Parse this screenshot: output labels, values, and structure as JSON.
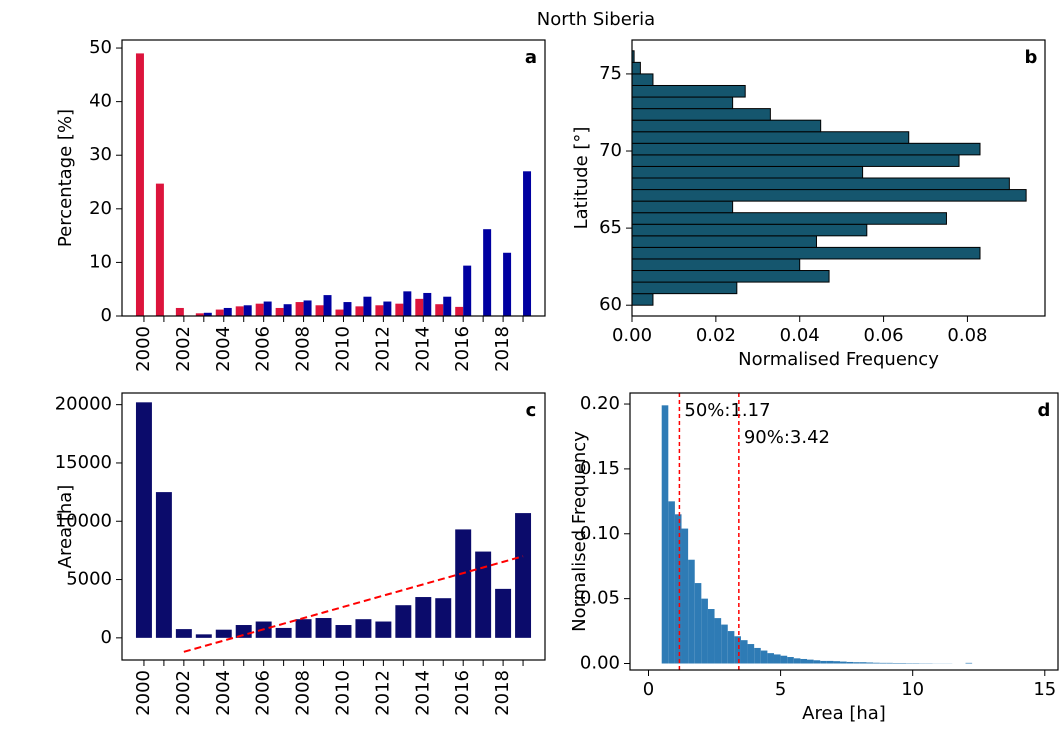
{
  "title": "North Siberia",
  "chart_data": [
    {
      "type": "bar",
      "label": "a",
      "ylabel": "Percentage [%]",
      "categories": [
        "2000",
        null,
        "2002",
        null,
        "2004",
        null,
        "2006",
        null,
        "2008",
        null,
        "2010",
        null,
        "2012",
        null,
        "2014",
        null,
        "2016",
        null,
        "2018",
        null
      ],
      "series": [
        {
          "color": "#dc143c",
          "values": [
            49,
            24.7,
            1.5,
            0.5,
            1.2,
            1.8,
            2.3,
            1.5,
            2.6,
            2.0,
            1.2,
            1.8,
            2.0,
            2.3,
            3.2,
            2.2,
            1.7,
            0,
            0,
            0
          ]
        },
        {
          "color": "#0000a0",
          "values": [
            0,
            0,
            0,
            0.6,
            1.5,
            2.0,
            2.7,
            2.2,
            2.9,
            3.9,
            2.6,
            3.6,
            2.7,
            4.6,
            4.3,
            3.6,
            9.4,
            16.2,
            11.8,
            27
          ]
        }
      ],
      "ylim": [
        0,
        51.5
      ],
      "yticks": [
        0,
        10,
        20,
        30,
        40,
        50
      ]
    },
    {
      "type": "histogram",
      "orientation": "horizontal",
      "label": "b",
      "ylabel": "Latitude [°]",
      "xlabel": "Normalised Frequency",
      "color": "#15566e",
      "edgecolor": "#000000",
      "bins": [
        60,
        60.75,
        61.5,
        62.25,
        63,
        63.75,
        64.5,
        65.25,
        66,
        66.75,
        67.5,
        68.25,
        69,
        69.75,
        70.5,
        71.25,
        72,
        72.75,
        73.5,
        74.25,
        75,
        75.75,
        76.5
      ],
      "values": [
        0.005,
        0.025,
        0.047,
        0.04,
        0.083,
        0.044,
        0.056,
        0.075,
        0.024,
        0.094,
        0.09,
        0.055,
        0.078,
        0.083,
        0.066,
        0.045,
        0.033,
        0.024,
        0.027,
        0.005,
        0.002,
        0.0005
      ],
      "xlim": [
        0,
        0.0985
      ],
      "xticks": [
        {
          "value": 0,
          "label": "0.00"
        },
        0.02,
        0.04,
        0.06,
        0.08
      ],
      "ylim": [
        59.3,
        77.2
      ],
      "yticks": [
        60,
        65,
        70,
        75
      ]
    },
    {
      "type": "bar",
      "label": "c",
      "ylabel": "Area [ha]",
      "color": "#0b0b6b",
      "categories": [
        "2000",
        null,
        "2002",
        null,
        "2004",
        null,
        "2006",
        null,
        "2008",
        null,
        "2010",
        null,
        "2012",
        null,
        "2014",
        null,
        "2016",
        null,
        "2018",
        null
      ],
      "values": [
        20200,
        12500,
        750,
        300,
        700,
        1100,
        1400,
        850,
        1600,
        1700,
        1100,
        1600,
        1400,
        2800,
        3500,
        3400,
        9300,
        7400,
        4200,
        10700
      ],
      "trend_color": "#ff0000",
      "trend_values": [
        null,
        null,
        -1200,
        -718,
        -235,
        247,
        729,
        1212,
        1694,
        2176,
        2659,
        3141,
        3624,
        4106,
        4588,
        5071,
        5553,
        6035,
        6518,
        7000
      ],
      "ylim": [
        -1900,
        21000
      ],
      "yticks": [
        0,
        5000,
        10000,
        15000,
        20000
      ]
    },
    {
      "type": "histogram",
      "orientation": "vertical",
      "label": "d",
      "ylabel": "Normalised Frequency",
      "xlabel": "Area [ha]",
      "color": "#2e7bb5",
      "bins": [
        0.5,
        0.75,
        1,
        1.25,
        1.5,
        1.75,
        2,
        2.25,
        2.5,
        2.75,
        3,
        3.25,
        3.5,
        3.75,
        4,
        4.25,
        4.5,
        4.75,
        5,
        5.25,
        5.5,
        5.75,
        6,
        6.25,
        6.5,
        6.75,
        7,
        7.25,
        7.5,
        7.75,
        8,
        8.25,
        8.5,
        8.75,
        9,
        9.25,
        9.5,
        9.75,
        10,
        10.25,
        10.5,
        10.75,
        11,
        11.25,
        11.5,
        11.75,
        12,
        12.25,
        12.5
      ],
      "values": [
        0.199,
        0.125,
        0.115,
        0.104,
        0.08,
        0.062,
        0.05,
        0.042,
        0.035,
        0.03,
        0.025,
        0.021,
        0.018,
        0.015,
        0.012,
        0.01,
        0.008,
        0.007,
        0.006,
        0.005,
        0.004,
        0.0035,
        0.003,
        0.0025,
        0.002,
        0.002,
        0.0018,
        0.0015,
        0.0012,
        0.001,
        0.001,
        0.0008,
        0.0006,
        0.0005,
        0.0005,
        0.0004,
        0.0004,
        0.0003,
        0.0003,
        0.0002,
        0.0002,
        0.0001,
        0.0001,
        0.0001,
        0,
        0,
        0.0005,
        0
      ],
      "annotations": [
        {
          "value": 1.17,
          "label": "50%:1.17"
        },
        {
          "value": 3.42,
          "label": "90%:3.42"
        }
      ],
      "annotation_color": "#ff0000",
      "xlim": [
        -0.7,
        15.5
      ],
      "xticks": [
        0,
        5,
        10,
        15
      ],
      "ylim": [
        -0.005,
        0.2085
      ],
      "yticks": [
        {
          "value": 0,
          "label": "0.00"
        },
        0.05,
        {
          "value": 0.1,
          "label": "0.10"
        },
        0.15,
        {
          "value": 0.2,
          "label": "0.20"
        }
      ]
    }
  ]
}
